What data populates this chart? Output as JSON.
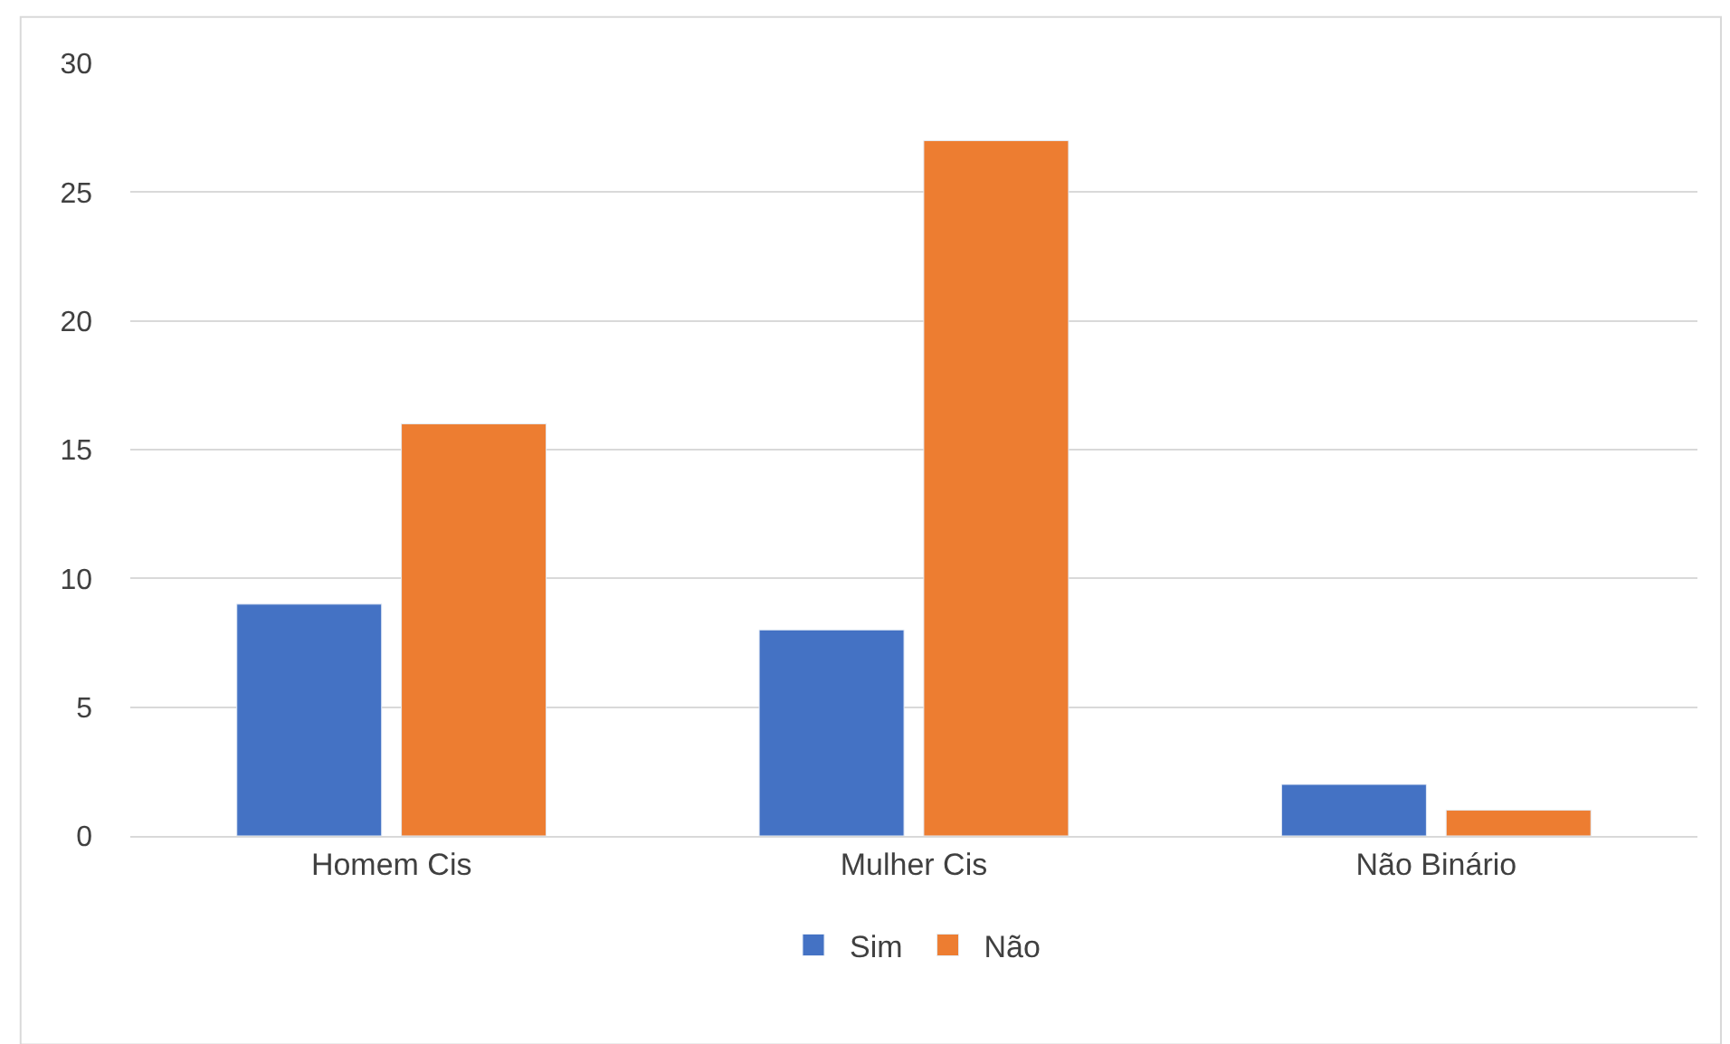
{
  "chart_data": {
    "type": "bar",
    "categories": [
      "Homem Cis",
      "Mulher Cis",
      "Não Binário"
    ],
    "series": [
      {
        "name": "Sim",
        "color": "#4472c4",
        "values": [
          9,
          8,
          2
        ]
      },
      {
        "name": "Não",
        "color": "#ed7d31",
        "values": [
          16,
          27,
          1
        ]
      }
    ],
    "ylim": [
      0,
      30
    ],
    "yticks": [
      0,
      5,
      10,
      15,
      20,
      25,
      30
    ],
    "grid": "y",
    "legend": "bottom"
  }
}
